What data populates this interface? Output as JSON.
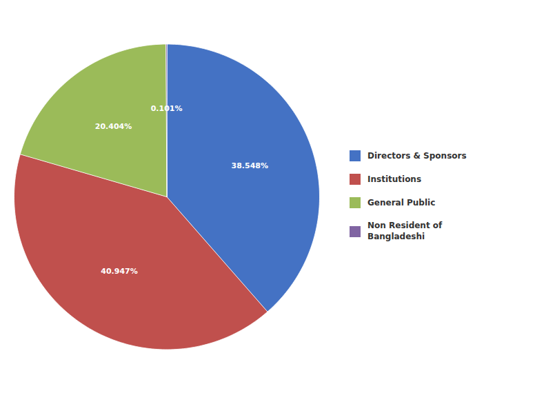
{
  "chart_data": {
    "type": "pie",
    "categories": [
      "Directors & Sponsors",
      "Institutions",
      "General Public",
      "Non Resident of\nBangladeshi"
    ],
    "values": [
      38.548,
      40.947,
      20.404,
      0.101
    ],
    "value_labels": [
      "38.548%",
      "40.947%",
      "20.404%",
      "0.101%"
    ],
    "colors": [
      "#4472C4",
      "#C0504D",
      "#9BBB59",
      "#8064A2"
    ],
    "data_labels": true,
    "legend": "right"
  }
}
